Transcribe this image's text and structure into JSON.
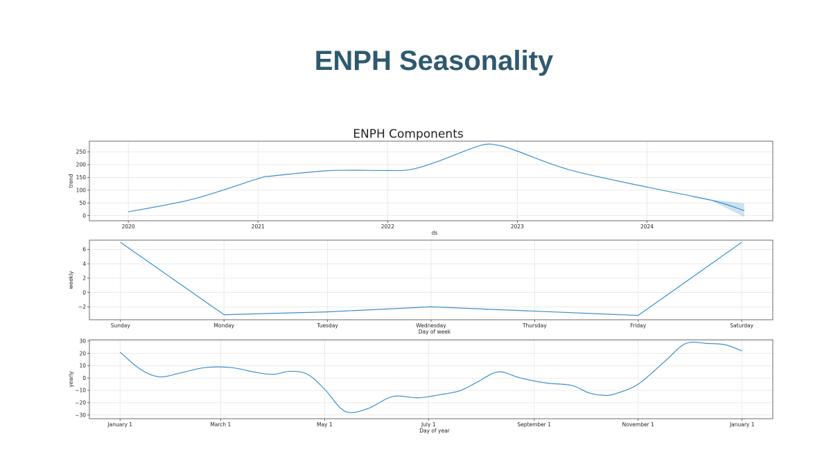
{
  "slide_title": "ENPH Seasonality",
  "figure_title": "ENPH Components",
  "chart_data": [
    {
      "type": "line",
      "ylabel": "trend",
      "xlabel": "ds",
      "x_ticks": [
        {
          "x": 2020,
          "label": "2020"
        },
        {
          "x": 2021,
          "label": "2021"
        },
        {
          "x": 2022,
          "label": "2022"
        },
        {
          "x": 2023,
          "label": "2023"
        },
        {
          "x": 2024,
          "label": "2024"
        }
      ],
      "y_ticks": [
        0,
        50,
        100,
        150,
        200,
        250
      ],
      "xlim": [
        2019.7,
        2024.97
      ],
      "ylim": [
        -20,
        292
      ],
      "series": [
        {
          "x": [
            2020.0,
            2020.5,
            2021.0,
            2021.1,
            2021.5,
            2021.7,
            2022.0,
            2022.18,
            2022.4,
            2022.72,
            2022.87,
            2023.0,
            2023.4,
            2024.0,
            2024.5,
            2024.75
          ],
          "values": [
            15,
            65,
            145,
            155,
            175,
            178,
            177,
            181,
            215,
            276,
            274,
            253,
            180,
            112,
            60,
            20
          ]
        }
      ],
      "uncertainty": {
        "x": [
          2024.35,
          2024.5,
          2024.75
        ],
        "lower": [
          71,
          58,
          -5
        ],
        "upper": [
          75,
          63,
          48
        ]
      }
    },
    {
      "type": "line",
      "ylabel": "weekly",
      "xlabel": "Day of week",
      "categories": [
        "Sunday",
        "Monday",
        "Tuesday",
        "Wednesday",
        "Thursday",
        "Friday",
        "Saturday"
      ],
      "y_ticks": [
        -2,
        0,
        2,
        4,
        6
      ],
      "ylim": [
        -3.8,
        7.3
      ],
      "series": [
        {
          "values": [
            7.0,
            -3.1,
            -2.7,
            -2.0,
            -2.6,
            -3.2,
            7.0
          ]
        }
      ]
    },
    {
      "type": "line",
      "ylabel": "yearly",
      "xlabel": "Day of year",
      "x_ticks": [
        {
          "x": 0,
          "label": "January 1"
        },
        {
          "x": 59,
          "label": "March 1"
        },
        {
          "x": 120,
          "label": "May 1"
        },
        {
          "x": 181,
          "label": "July 1"
        },
        {
          "x": 243,
          "label": "September 1"
        },
        {
          "x": 304,
          "label": "November 1"
        },
        {
          "x": 365,
          "label": "January 1"
        }
      ],
      "y_ticks": [
        -30,
        -20,
        -10,
        0,
        10,
        20,
        30
      ],
      "xlim": [
        -18,
        383
      ],
      "ylim": [
        -33,
        31
      ],
      "series": [
        {
          "x": [
            0,
            12,
            23,
            35,
            50,
            65,
            80,
            90,
            100,
            110,
            120,
            132,
            145,
            160,
            175,
            190,
            200,
            210,
            222,
            235,
            250,
            265,
            275,
            283,
            290,
            304,
            320,
            332,
            345,
            355,
            365
          ],
          "values": [
            21,
            7,
            1,
            4,
            8.5,
            8.5,
            4.5,
            3,
            5.5,
            3,
            -9,
            -27,
            -25,
            -15,
            -16,
            -13,
            -10,
            -3,
            5,
            0,
            -4,
            -6,
            -12,
            -14,
            -13,
            -5,
            14,
            28,
            28,
            27,
            22
          ]
        }
      ]
    }
  ]
}
